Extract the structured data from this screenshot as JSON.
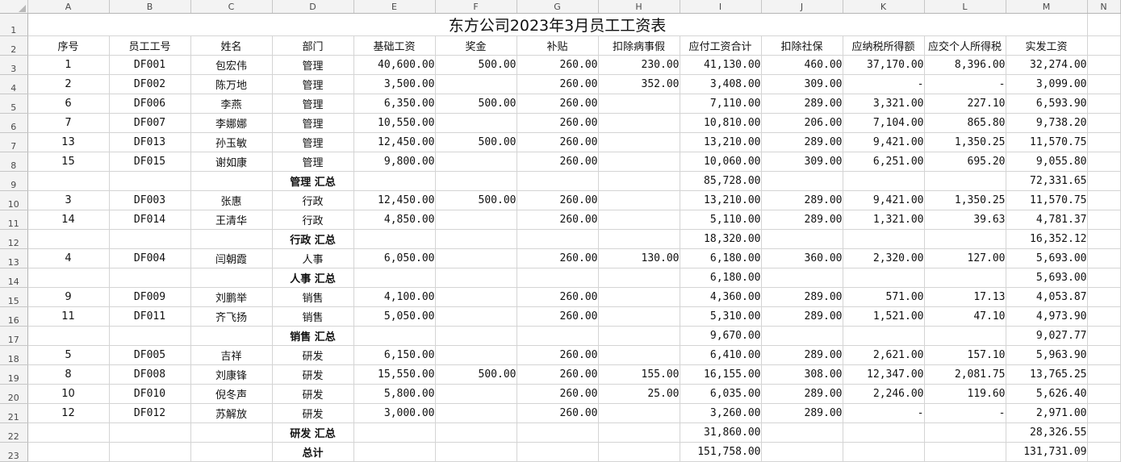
{
  "columns": [
    "A",
    "B",
    "C",
    "D",
    "E",
    "F",
    "G",
    "H",
    "I",
    "J",
    "K",
    "L",
    "M",
    "N"
  ],
  "title": "东方公司2023年3月员工工资表",
  "headers": [
    "序号",
    "员工工号",
    "姓名",
    "部门",
    "基础工资",
    "奖金",
    "补贴",
    "扣除病事假",
    "应付工资合计",
    "扣除社保",
    "应纳税所得额",
    "应交个人所得税",
    "实发工资"
  ],
  "rows": [
    {
      "row": "3",
      "type": "data",
      "cells": [
        "1",
        "DF001",
        "包宏伟",
        "管理",
        "40,600.00",
        "500.00",
        "260.00",
        "230.00",
        "41,130.00",
        "460.00",
        "37,170.00",
        "8,396.00",
        "32,274.00"
      ]
    },
    {
      "row": "4",
      "type": "data",
      "cells": [
        "2",
        "DF002",
        "陈万地",
        "管理",
        "3,500.00",
        "",
        "260.00",
        "352.00",
        "3,408.00",
        "309.00",
        "-",
        "-",
        "3,099.00"
      ]
    },
    {
      "row": "5",
      "type": "data",
      "cells": [
        "6",
        "DF006",
        "李燕",
        "管理",
        "6,350.00",
        "500.00",
        "260.00",
        "",
        "7,110.00",
        "289.00",
        "3,321.00",
        "227.10",
        "6,593.90"
      ]
    },
    {
      "row": "6",
      "type": "data",
      "cells": [
        "7",
        "DF007",
        "李娜娜",
        "管理",
        "10,550.00",
        "",
        "260.00",
        "",
        "10,810.00",
        "206.00",
        "7,104.00",
        "865.80",
        "9,738.20"
      ]
    },
    {
      "row": "7",
      "type": "data",
      "cells": [
        "13",
        "DF013",
        "孙玉敏",
        "管理",
        "12,450.00",
        "500.00",
        "260.00",
        "",
        "13,210.00",
        "289.00",
        "9,421.00",
        "1,350.25",
        "11,570.75"
      ]
    },
    {
      "row": "8",
      "type": "data",
      "cells": [
        "15",
        "DF015",
        "谢如康",
        "管理",
        "9,800.00",
        "",
        "260.00",
        "",
        "10,060.00",
        "309.00",
        "6,251.00",
        "695.20",
        "9,055.80"
      ]
    },
    {
      "row": "9",
      "type": "sub",
      "cells": [
        "",
        "",
        "",
        "管理 汇总",
        "",
        "",
        "",
        "",
        "85,728.00",
        "",
        "",
        "",
        "72,331.65"
      ]
    },
    {
      "row": "10",
      "type": "data",
      "cells": [
        "3",
        "DF003",
        "张惠",
        "行政",
        "12,450.00",
        "500.00",
        "260.00",
        "",
        "13,210.00",
        "289.00",
        "9,421.00",
        "1,350.25",
        "11,570.75"
      ]
    },
    {
      "row": "11",
      "type": "data",
      "cells": [
        "14",
        "DF014",
        "王清华",
        "行政",
        "4,850.00",
        "",
        "260.00",
        "",
        "5,110.00",
        "289.00",
        "1,321.00",
        "39.63",
        "4,781.37"
      ]
    },
    {
      "row": "12",
      "type": "sub",
      "cells": [
        "",
        "",
        "",
        "行政 汇总",
        "",
        "",
        "",
        "",
        "18,320.00",
        "",
        "",
        "",
        "16,352.12"
      ]
    },
    {
      "row": "13",
      "type": "data",
      "cells": [
        "4",
        "DF004",
        "闫朝霞",
        "人事",
        "6,050.00",
        "",
        "260.00",
        "130.00",
        "6,180.00",
        "360.00",
        "2,320.00",
        "127.00",
        "5,693.00"
      ]
    },
    {
      "row": "14",
      "type": "sub",
      "cells": [
        "",
        "",
        "",
        "人事 汇总",
        "",
        "",
        "",
        "",
        "6,180.00",
        "",
        "",
        "",
        "5,693.00"
      ]
    },
    {
      "row": "15",
      "type": "data",
      "cells": [
        "9",
        "DF009",
        "刘鹏举",
        "销售",
        "4,100.00",
        "",
        "260.00",
        "",
        "4,360.00",
        "289.00",
        "571.00",
        "17.13",
        "4,053.87"
      ]
    },
    {
      "row": "16",
      "type": "data",
      "cells": [
        "11",
        "DF011",
        "齐飞扬",
        "销售",
        "5,050.00",
        "",
        "260.00",
        "",
        "5,310.00",
        "289.00",
        "1,521.00",
        "47.10",
        "4,973.90"
      ]
    },
    {
      "row": "17",
      "type": "sub",
      "cells": [
        "",
        "",
        "",
        "销售 汇总",
        "",
        "",
        "",
        "",
        "9,670.00",
        "",
        "",
        "",
        "9,027.77"
      ]
    },
    {
      "row": "18",
      "type": "data",
      "cells": [
        "5",
        "DF005",
        "吉祥",
        "研发",
        "6,150.00",
        "",
        "260.00",
        "",
        "6,410.00",
        "289.00",
        "2,621.00",
        "157.10",
        "5,963.90"
      ]
    },
    {
      "row": "19",
      "type": "data",
      "cells": [
        "8",
        "DF008",
        "刘康锋",
        "研发",
        "15,550.00",
        "500.00",
        "260.00",
        "155.00",
        "16,155.00",
        "308.00",
        "12,347.00",
        "2,081.75",
        "13,765.25"
      ]
    },
    {
      "row": "20",
      "type": "data",
      "cells": [
        "10",
        "DF010",
        "倪冬声",
        "研发",
        "5,800.00",
        "",
        "260.00",
        "25.00",
        "6,035.00",
        "289.00",
        "2,246.00",
        "119.60",
        "5,626.40"
      ]
    },
    {
      "row": "21",
      "type": "data",
      "cells": [
        "12",
        "DF012",
        "苏解放",
        "研发",
        "3,000.00",
        "",
        "260.00",
        "",
        "3,260.00",
        "289.00",
        "-",
        "-",
        "2,971.00"
      ]
    },
    {
      "row": "22",
      "type": "sub",
      "cells": [
        "",
        "",
        "",
        "研发 汇总",
        "",
        "",
        "",
        "",
        "31,860.00",
        "",
        "",
        "",
        "28,326.55"
      ]
    },
    {
      "row": "23",
      "type": "sub",
      "cells": [
        "",
        "",
        "",
        "总计",
        "",
        "",
        "",
        "",
        "151,758.00",
        "",
        "",
        "",
        "131,731.09"
      ]
    }
  ]
}
